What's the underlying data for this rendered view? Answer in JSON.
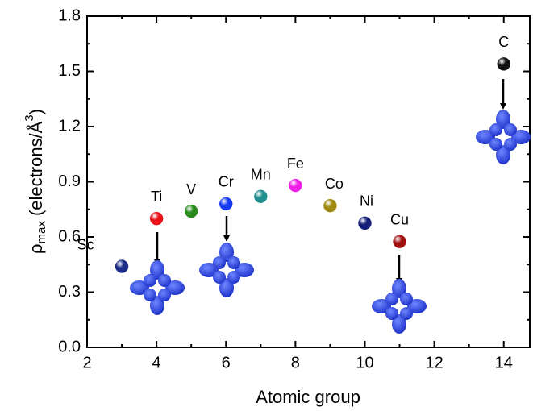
{
  "chart_data": {
    "type": "scatter",
    "x_label": "Atomic group",
    "y_label_parts": [
      "ρ",
      "max",
      " (electrons/Å",
      "3",
      ")"
    ],
    "xlim": [
      2,
      14.75
    ],
    "xticks": [
      2,
      4,
      6,
      8,
      10,
      12,
      14
    ],
    "ylim": [
      0,
      1.8
    ],
    "yticks": [
      {
        "value": 0,
        "label": "0.0"
      },
      0.3,
      0.6,
      0.9,
      1.2,
      1.5,
      1.8
    ],
    "points": [
      {
        "name": "Sc",
        "x": 3,
        "y": 0.44,
        "color": "#1c2a8a"
      },
      {
        "name": "Ti",
        "x": 4,
        "y": 0.7,
        "color": "#e8141a"
      },
      {
        "name": "V",
        "x": 5,
        "y": 0.74,
        "color": "#2a8a1e"
      },
      {
        "name": "Cr",
        "x": 6,
        "y": 0.78,
        "color": "#1a3cf0"
      },
      {
        "name": "Mn",
        "x": 7,
        "y": 0.82,
        "color": "#1f8f8f"
      },
      {
        "name": "Fe",
        "x": 8,
        "y": 0.88,
        "color": "#f020e8"
      },
      {
        "name": "Co",
        "x": 9,
        "y": 0.77,
        "color": "#a08a12"
      },
      {
        "name": "Ni",
        "x": 10,
        "y": 0.675,
        "color": "#141e78"
      },
      {
        "name": "Cu",
        "x": 11,
        "y": 0.575,
        "color": "#a0100e"
      },
      {
        "name": "C",
        "x": 14,
        "y": 1.54,
        "color": "#111111"
      }
    ]
  }
}
